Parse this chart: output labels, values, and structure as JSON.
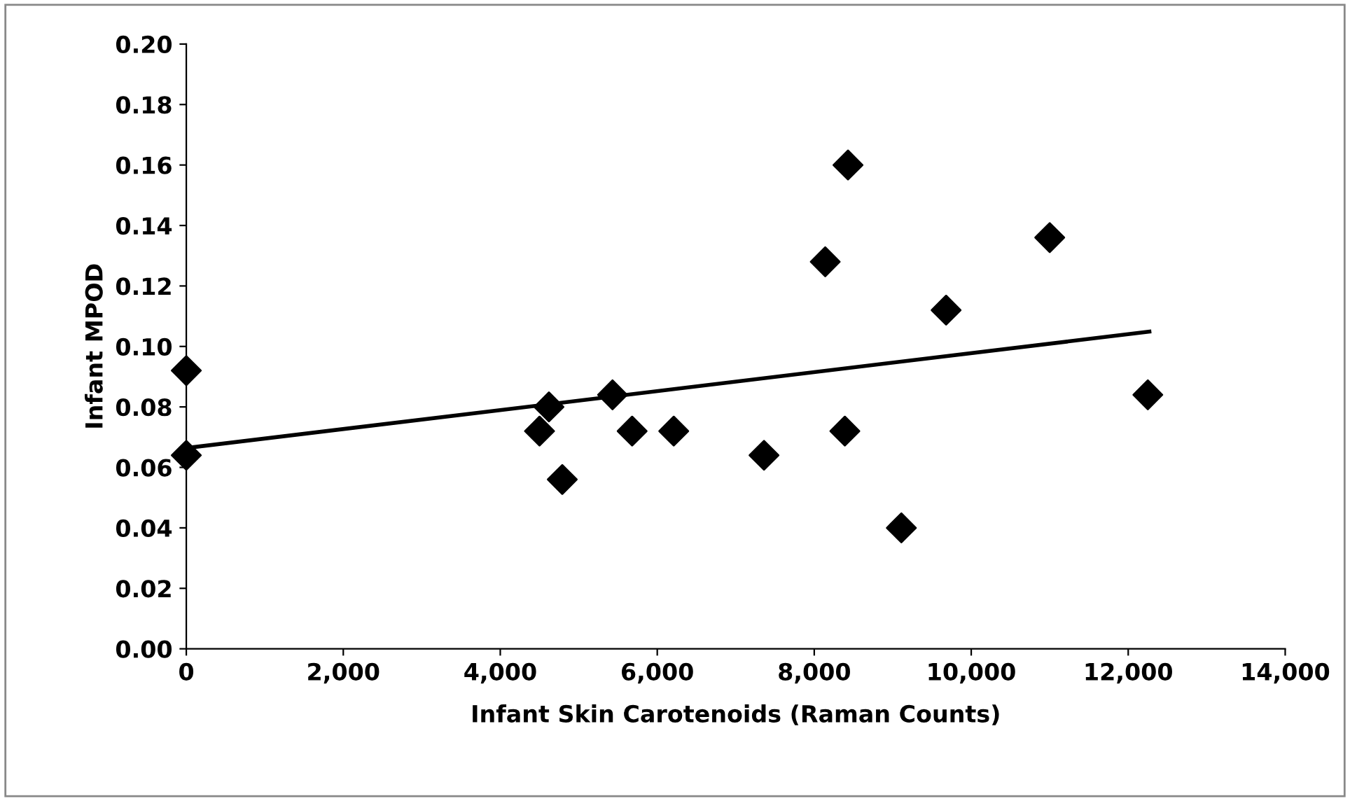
{
  "chart_data": {
    "type": "scatter",
    "xlabel": "Infant Skin Carotenoids (Raman Counts)",
    "ylabel": "Infant MPOD",
    "xlim": [
      0,
      14000
    ],
    "xticks": [
      {
        "value": 0,
        "label": "0"
      },
      {
        "value": 2000,
        "label": "2,000"
      },
      {
        "value": 4000,
        "label": "4,000"
      },
      {
        "value": 6000,
        "label": "6,000"
      },
      {
        "value": 8000,
        "label": "8,000"
      },
      {
        "value": 10000,
        "label": "10,000"
      },
      {
        "value": 12000,
        "label": "12,000"
      },
      {
        "value": 14000,
        "label": "14,000"
      }
    ],
    "ylim": [
      0,
      0.2
    ],
    "yticks": [
      {
        "value": 0,
        "label": "0.00"
      },
      {
        "value": 0.02,
        "label": "0.02"
      },
      {
        "value": 0.04,
        "label": "0.04"
      },
      {
        "value": 0.06,
        "label": "0.06"
      },
      {
        "value": 0.08,
        "label": "0.08"
      },
      {
        "value": 0.1,
        "label": "0.10"
      },
      {
        "value": 0.12,
        "label": "0.12"
      },
      {
        "value": 0.14,
        "label": "0.14"
      },
      {
        "value": 0.16,
        "label": "0.16"
      },
      {
        "value": 0.18,
        "label": "0.18"
      },
      {
        "value": 0.2,
        "label": "0.20"
      }
    ],
    "grid": false,
    "legend": false,
    "series": [
      {
        "marker": "diamond",
        "color": "#000000",
        "x": [
          0,
          0,
          4500,
          4620,
          4790,
          5430,
          5680,
          6210,
          7360,
          8140,
          8430,
          8390,
          9110,
          9680,
          11000,
          12250
        ],
        "values": [
          0.092,
          0.064,
          0.072,
          0.08,
          0.056,
          0.084,
          0.072,
          0.072,
          0.064,
          0.128,
          0.16,
          0.072,
          0.04,
          0.112,
          0.136,
          0.084
        ]
      },
      {
        "type": "line",
        "marker": "none",
        "color": "#000000",
        "line_style": "solid",
        "x": [
          0,
          12270
        ],
        "values": [
          0.0664,
          0.1049
        ]
      }
    ]
  }
}
